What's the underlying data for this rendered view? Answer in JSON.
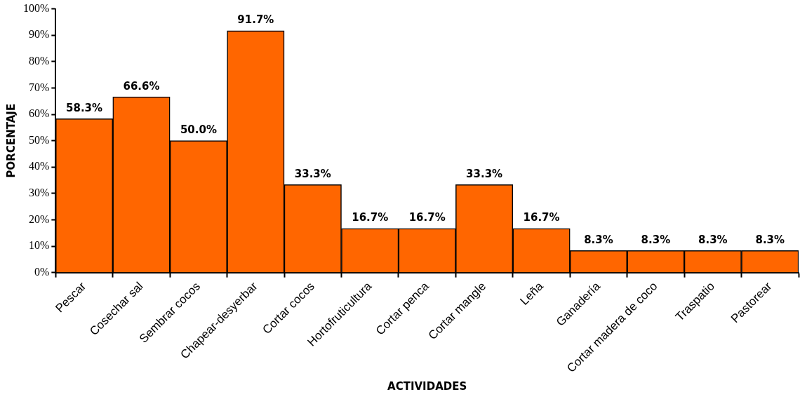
{
  "chart_data": {
    "type": "bar",
    "xlabel": "ACTIVIDADES",
    "ylabel": "PORCENTAJE",
    "categories": [
      "Pescar",
      "Cosechar sal",
      "Sembrar cocos",
      "Chapear-desyerbar",
      "Cortar cocos",
      "Hortofruticultura",
      "Cortar penca",
      "Cortar mangle",
      "Leña",
      "Ganadería",
      "Cortar madera de coco",
      "Traspatio",
      "Pastorear"
    ],
    "values": [
      58.3,
      66.6,
      50.0,
      91.7,
      33.3,
      16.7,
      16.7,
      33.3,
      16.7,
      8.3,
      8.3,
      8.3,
      8.3
    ],
    "value_labels": [
      "58.3%",
      "66.6%",
      "50.0%",
      "91.7%",
      "33.3%",
      "16.7%",
      "16.7%",
      "33.3%",
      "16.7%",
      "8.3%",
      "8.3%",
      "8.3%",
      "8.3%"
    ],
    "color": "#ff6600",
    "ylim": [
      0,
      100
    ],
    "yticks": [
      {
        "value": 0,
        "label": "0%"
      },
      {
        "value": 10,
        "label": "10%"
      },
      {
        "value": 20,
        "label": "20%"
      },
      {
        "value": 30,
        "label": "30%"
      },
      {
        "value": 40,
        "label": "40%"
      },
      {
        "value": 50,
        "label": "50%"
      },
      {
        "value": 60,
        "label": "60%"
      },
      {
        "value": 70,
        "label": "70%"
      },
      {
        "value": 80,
        "label": "80%"
      },
      {
        "value": 90,
        "label": "90%"
      },
      {
        "value": 100,
        "label": "100%"
      }
    ],
    "grid": false,
    "legend": false
  }
}
